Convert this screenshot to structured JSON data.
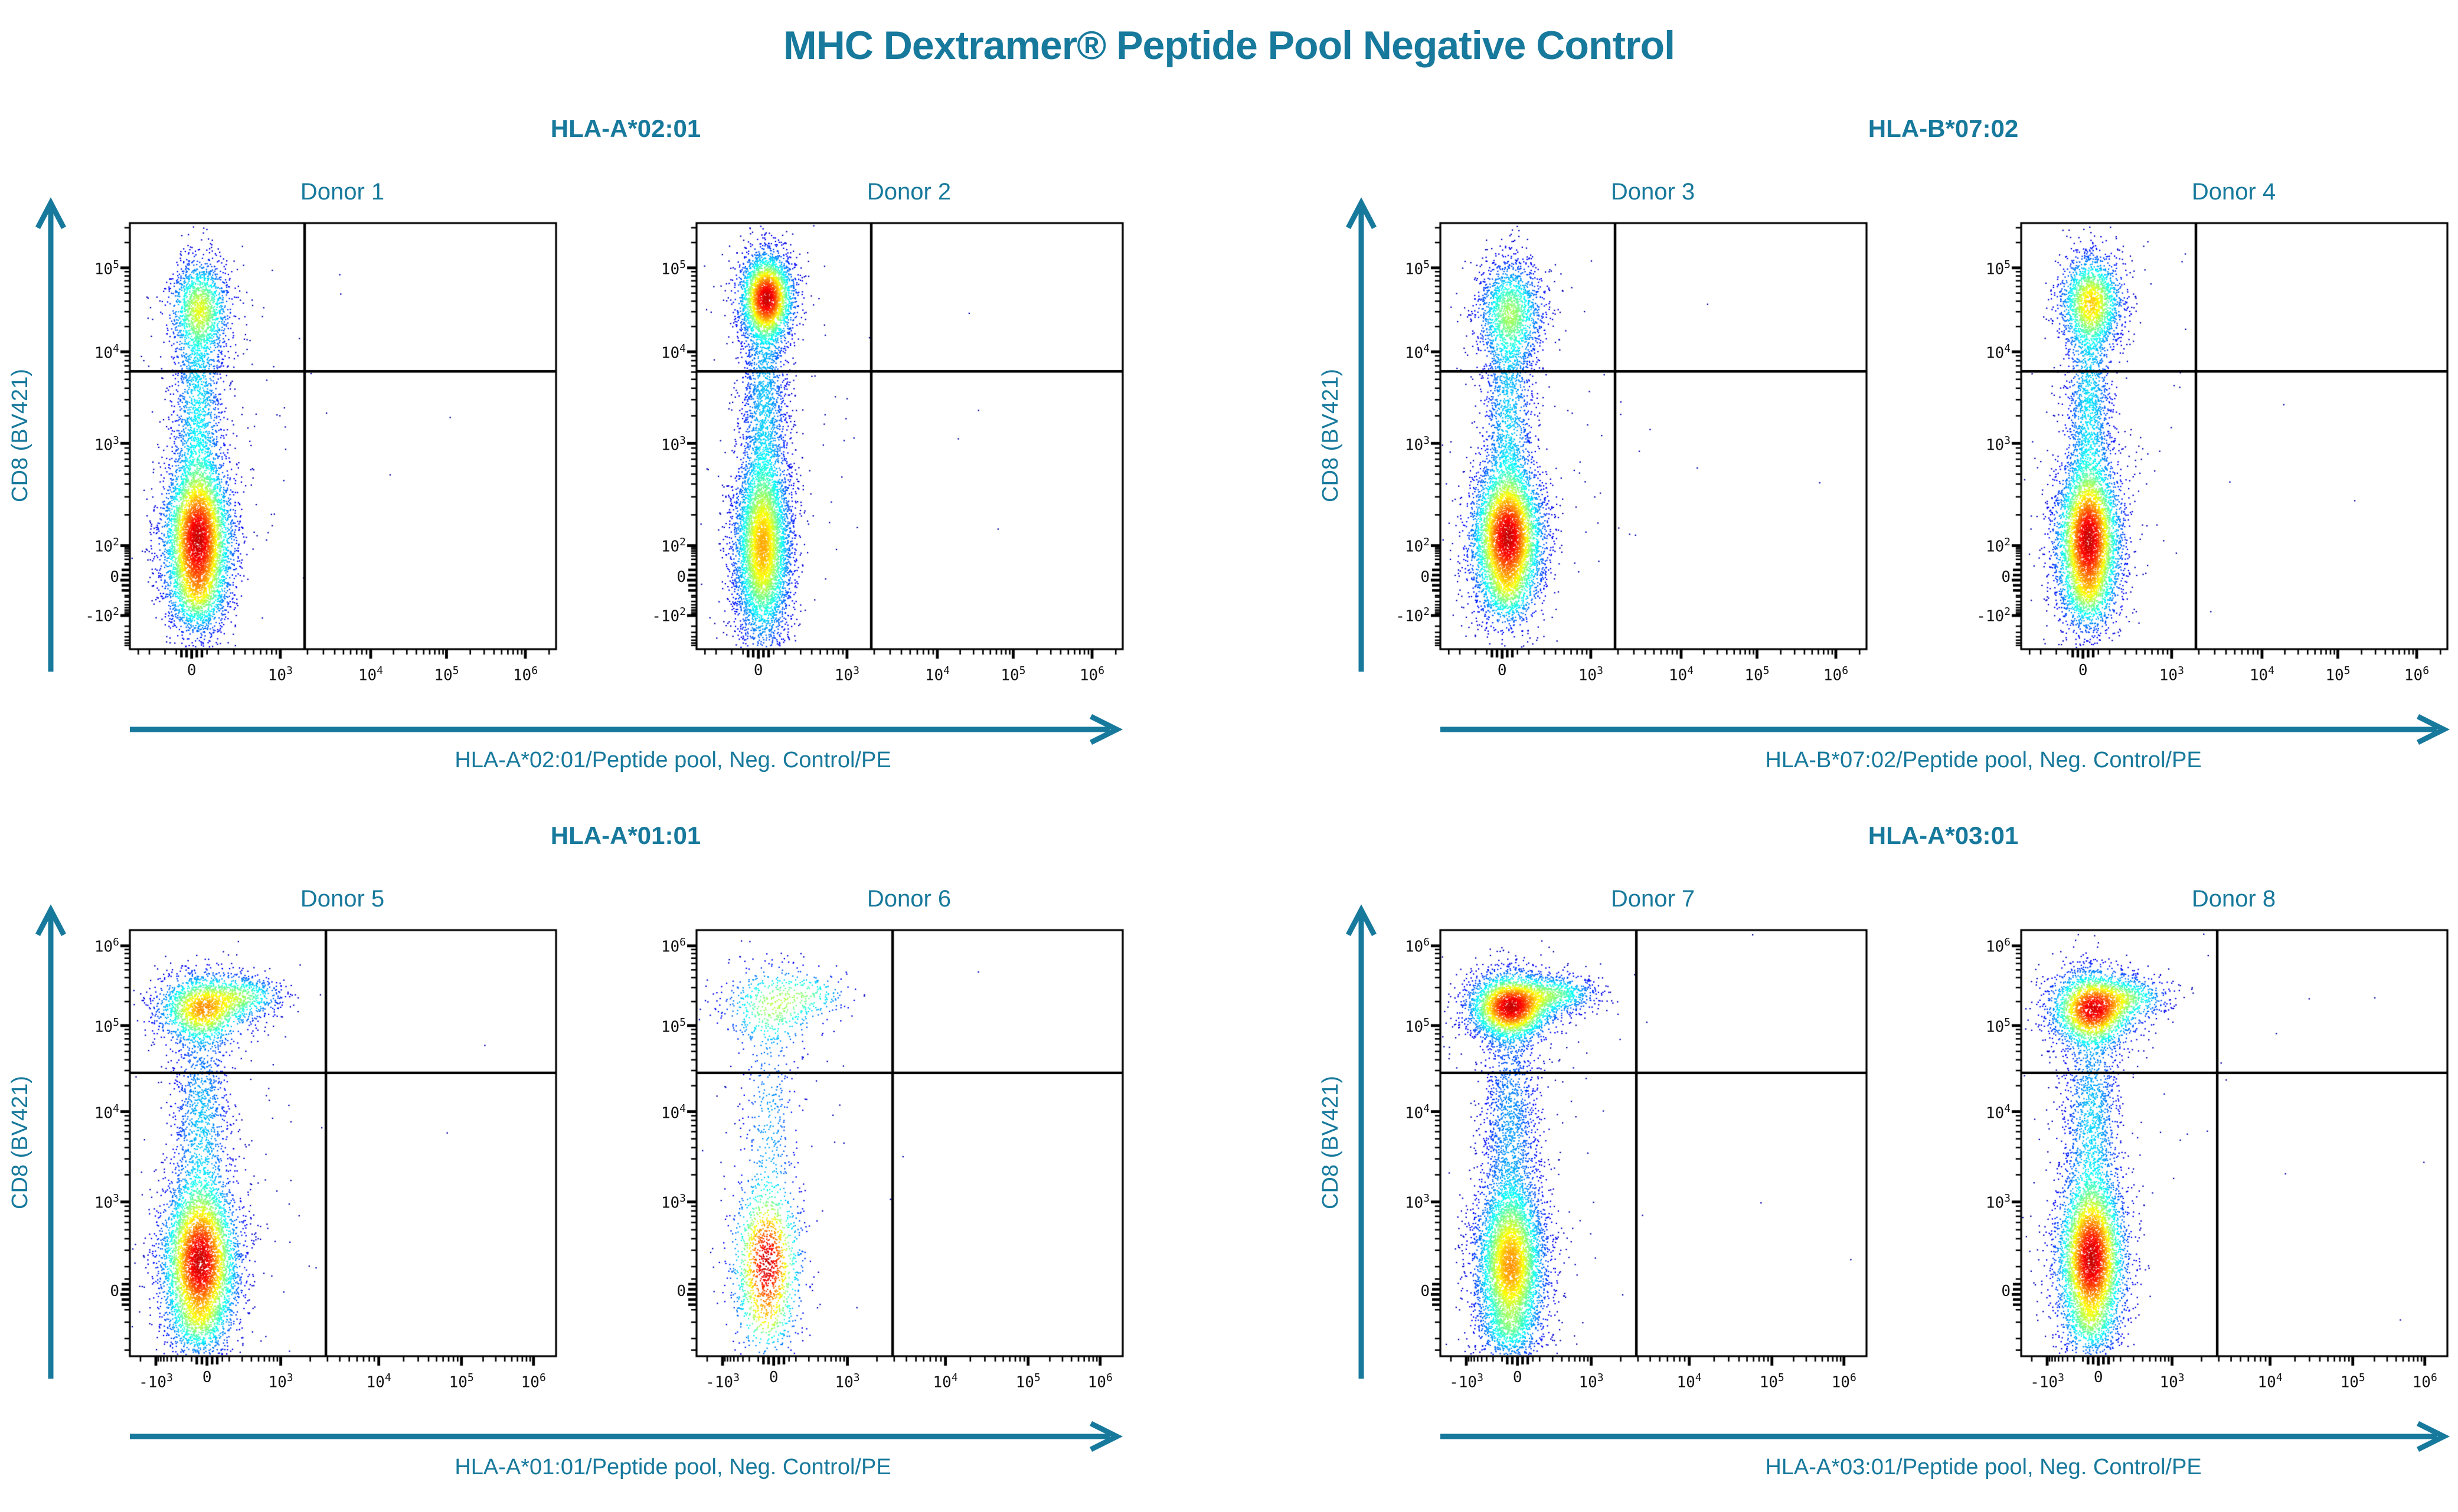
{
  "title": "MHC Dextramer® Peptide Pool Negative Control",
  "colors": {
    "accent": "#17799c",
    "tick_text": "#111111",
    "gate_line": "#000000",
    "frame": "#000000"
  },
  "groups": [
    {
      "allele": "HLA-A*02:01",
      "donors": [
        "Donor 1",
        "Donor 2"
      ],
      "x_axis_label": "HLA-A*02:01/Peptide pool, Neg. Control/PE",
      "y_axis_label": "CD8 (BV421)"
    },
    {
      "allele": "HLA-B*07:02",
      "donors": [
        "Donor 3",
        "Donor 4"
      ],
      "x_axis_label": "HLA-B*07:02/Peptide pool, Neg. Control/PE",
      "y_axis_label": "CD8 (BV421)"
    },
    {
      "allele": "HLA-A*01:01",
      "donors": [
        "Donor 5",
        "Donor 6"
      ],
      "x_axis_label": "HLA-A*01:01/Peptide pool, Neg. Control/PE",
      "y_axis_label": "CD8 (BV421)"
    },
    {
      "allele": "HLA-A*03:01",
      "donors": [
        "Donor 7",
        "Donor 8"
      ],
      "x_axis_label": "HLA-A*03:01/Peptide pool, Neg. Control/PE",
      "y_axis_label": "CD8 (BV421)"
    }
  ],
  "chart_data": {
    "type": "scatter",
    "subtype": "flow-cytometry-pseudocolor-density",
    "description": "Eight biexponential CD8 (BV421) vs MHC Dextramer negative-control PE density dot plots. All donors show CD8+ and CD8- populations at PE signal ~0 (left of vertical quadrant gate); upper-right and lower-right quadrants are empty (negative control).",
    "rows": [
      {
        "y_ticks": [
          {
            "m": "-10",
            "e": "2",
            "v": -100,
            "pos": 0.079
          },
          {
            "m": "0",
            "v": 0,
            "pos": 0.162
          },
          {
            "m": "10",
            "e": "2",
            "v": 100,
            "pos": 0.243
          },
          {
            "m": "10",
            "e": "3",
            "v": 1000,
            "pos": 0.483
          },
          {
            "m": "10",
            "e": "4",
            "v": 10000,
            "pos": 0.698
          },
          {
            "m": "10",
            "e": "5",
            "v": 100000,
            "pos": 0.895
          }
        ],
        "x_ticks": [
          {
            "m": "0",
            "v": 0,
            "pos": 0.145
          },
          {
            "m": "10",
            "e": "3",
            "v": 1000,
            "pos": 0.353
          },
          {
            "m": "10",
            "e": "4",
            "v": 10000,
            "pos": 0.565
          },
          {
            "m": "10",
            "e": "5",
            "v": 100000,
            "pos": 0.743
          },
          {
            "m": "10",
            "e": "6",
            "v": 1000000,
            "pos": 0.928
          }
        ],
        "gate": {
          "x": 0.41,
          "y": 0.652,
          "x_value": 2000,
          "y_value": 6000
        }
      },
      {
        "y_ticks": [
          {
            "m": "0",
            "v": 0,
            "pos": 0.145
          },
          {
            "m": "10",
            "e": "3",
            "v": 1000,
            "pos": 0.362
          },
          {
            "m": "10",
            "e": "4",
            "v": 10000,
            "pos": 0.574
          },
          {
            "m": "10",
            "e": "5",
            "v": 100000,
            "pos": 0.776
          },
          {
            "m": "10",
            "e": "6",
            "v": 1000000,
            "pos": 0.963
          }
        ],
        "x_ticks": [
          {
            "m": "-10",
            "e": "3",
            "v": -1000,
            "pos": 0.061
          },
          {
            "m": "0",
            "v": 0,
            "pos": 0.181
          },
          {
            "m": "10",
            "e": "3",
            "v": 1000,
            "pos": 0.354
          },
          {
            "m": "10",
            "e": "4",
            "v": 10000,
            "pos": 0.584
          },
          {
            "m": "10",
            "e": "5",
            "v": 100000,
            "pos": 0.778
          },
          {
            "m": "10",
            "e": "6",
            "v": 1000000,
            "pos": 0.947
          }
        ],
        "gate": {
          "x": 0.46,
          "y": 0.665,
          "x_value": 3000,
          "y_value": 30000
        }
      }
    ],
    "plots": [
      {
        "donor": "Donor 1",
        "hla": "HLA-A*02:01",
        "row": 0,
        "col": 0,
        "seed": 11,
        "clusters": [
          {
            "x": 0.165,
            "y": 0.8,
            "sx": 0.036,
            "sy": 0.058,
            "n": 1400
          },
          {
            "x": 0.16,
            "y": 0.56,
            "sx": 0.03,
            "sy": 0.15,
            "n": 1600
          },
          {
            "x": 0.16,
            "y": 0.255,
            "sx": 0.04,
            "sy": 0.095,
            "n": 5200
          },
          {
            "x": 0.158,
            "y": 0.125,
            "sx": 0.033,
            "sy": 0.045,
            "n": 500
          },
          {
            "x": 0.19,
            "y": 0.55,
            "sx": 0.11,
            "sy": 0.3,
            "n": 120
          },
          {
            "x": 0.45,
            "y": 0.6,
            "sx": 0.28,
            "sy": 0.25,
            "n": 12
          }
        ]
      },
      {
        "donor": "Donor 2",
        "hla": "HLA-A*02:01",
        "row": 0,
        "col": 1,
        "seed": 22,
        "clusters": [
          {
            "x": 0.165,
            "y": 0.825,
            "sx": 0.032,
            "sy": 0.052,
            "n": 3000
          },
          {
            "x": 0.16,
            "y": 0.58,
            "sx": 0.028,
            "sy": 0.16,
            "n": 1800
          },
          {
            "x": 0.155,
            "y": 0.235,
            "sx": 0.034,
            "sy": 0.115,
            "n": 5000
          },
          {
            "x": 0.185,
            "y": 0.52,
            "sx": 0.1,
            "sy": 0.32,
            "n": 120
          },
          {
            "x": 0.45,
            "y": 0.65,
            "sx": 0.25,
            "sy": 0.22,
            "n": 10
          }
        ]
      },
      {
        "donor": "Donor 3",
        "hla": "HLA-B*07:02",
        "row": 0,
        "col": 2,
        "seed": 33,
        "clusters": [
          {
            "x": 0.165,
            "y": 0.79,
            "sx": 0.04,
            "sy": 0.062,
            "n": 1500
          },
          {
            "x": 0.16,
            "y": 0.55,
            "sx": 0.03,
            "sy": 0.15,
            "n": 1500
          },
          {
            "x": 0.158,
            "y": 0.26,
            "sx": 0.042,
            "sy": 0.085,
            "n": 5200
          },
          {
            "x": 0.157,
            "y": 0.13,
            "sx": 0.032,
            "sy": 0.04,
            "n": 400
          },
          {
            "x": 0.19,
            "y": 0.55,
            "sx": 0.11,
            "sy": 0.3,
            "n": 130
          },
          {
            "x": 0.45,
            "y": 0.6,
            "sx": 0.28,
            "sy": 0.25,
            "n": 12
          }
        ]
      },
      {
        "donor": "Donor 4",
        "hla": "HLA-B*07:02",
        "row": 0,
        "col": 3,
        "seed": 44,
        "clusters": [
          {
            "x": 0.165,
            "y": 0.815,
            "sx": 0.038,
            "sy": 0.056,
            "n": 1800
          },
          {
            "x": 0.16,
            "y": 0.57,
            "sx": 0.028,
            "sy": 0.15,
            "n": 1500
          },
          {
            "x": 0.158,
            "y": 0.255,
            "sx": 0.038,
            "sy": 0.092,
            "n": 5000
          },
          {
            "x": 0.157,
            "y": 0.125,
            "sx": 0.032,
            "sy": 0.042,
            "n": 400
          },
          {
            "x": 0.19,
            "y": 0.55,
            "sx": 0.1,
            "sy": 0.3,
            "n": 120
          },
          {
            "x": 0.45,
            "y": 0.6,
            "sx": 0.25,
            "sy": 0.22,
            "n": 10
          }
        ]
      },
      {
        "donor": "Donor 5",
        "hla": "HLA-A*01:01",
        "row": 1,
        "col": 0,
        "seed": 55,
        "clusters": [
          {
            "x": 0.17,
            "y": 0.815,
            "sx": 0.055,
            "sy": 0.042,
            "n": 1800
          },
          {
            "x": 0.27,
            "y": 0.845,
            "sx": 0.048,
            "sy": 0.026,
            "n": 500
          },
          {
            "x": 0.168,
            "y": 0.55,
            "sx": 0.035,
            "sy": 0.14,
            "n": 1200
          },
          {
            "x": 0.165,
            "y": 0.22,
            "sx": 0.045,
            "sy": 0.1,
            "n": 5200
          },
          {
            "x": 0.16,
            "y": 0.075,
            "sx": 0.035,
            "sy": 0.035,
            "n": 250
          },
          {
            "x": 0.2,
            "y": 0.5,
            "sx": 0.11,
            "sy": 0.3,
            "n": 120
          },
          {
            "x": 0.5,
            "y": 0.5,
            "sx": 0.28,
            "sy": 0.26,
            "n": 10
          }
        ]
      },
      {
        "donor": "Donor 6",
        "hla": "HLA-A*01:01",
        "row": 1,
        "col": 1,
        "seed": 66,
        "clusters": [
          {
            "x": 0.175,
            "y": 0.82,
            "sx": 0.06,
            "sy": 0.05,
            "n": 450
          },
          {
            "x": 0.27,
            "y": 0.85,
            "sx": 0.05,
            "sy": 0.028,
            "n": 140
          },
          {
            "x": 0.17,
            "y": 0.56,
            "sx": 0.035,
            "sy": 0.14,
            "n": 300
          },
          {
            "x": 0.165,
            "y": 0.215,
            "sx": 0.04,
            "sy": 0.1,
            "n": 1400
          },
          {
            "x": 0.16,
            "y": 0.08,
            "sx": 0.03,
            "sy": 0.03,
            "n": 60
          },
          {
            "x": 0.2,
            "y": 0.5,
            "sx": 0.1,
            "sy": 0.28,
            "n": 60
          },
          {
            "x": 0.5,
            "y": 0.55,
            "sx": 0.25,
            "sy": 0.25,
            "n": 6
          }
        ]
      },
      {
        "donor": "Donor 7",
        "hla": "HLA-A*03:01",
        "row": 1,
        "col": 2,
        "seed": 77,
        "clusters": [
          {
            "x": 0.165,
            "y": 0.82,
            "sx": 0.05,
            "sy": 0.04,
            "n": 3200
          },
          {
            "x": 0.275,
            "y": 0.85,
            "sx": 0.05,
            "sy": 0.024,
            "n": 700
          },
          {
            "x": 0.165,
            "y": 0.55,
            "sx": 0.036,
            "sy": 0.15,
            "n": 1500
          },
          {
            "x": 0.165,
            "y": 0.21,
            "sx": 0.042,
            "sy": 0.105,
            "n": 5200
          },
          {
            "x": 0.16,
            "y": 0.06,
            "sx": 0.035,
            "sy": 0.03,
            "n": 250
          },
          {
            "x": 0.2,
            "y": 0.5,
            "sx": 0.11,
            "sy": 0.3,
            "n": 130
          },
          {
            "x": 0.5,
            "y": 0.55,
            "sx": 0.28,
            "sy": 0.25,
            "n": 10
          }
        ]
      },
      {
        "donor": "Donor 8",
        "hla": "HLA-A*03:01",
        "row": 1,
        "col": 3,
        "seed": 88,
        "clusters": [
          {
            "x": 0.168,
            "y": 0.815,
            "sx": 0.05,
            "sy": 0.045,
            "n": 2600
          },
          {
            "x": 0.262,
            "y": 0.842,
            "sx": 0.046,
            "sy": 0.026,
            "n": 450
          },
          {
            "x": 0.166,
            "y": 0.55,
            "sx": 0.034,
            "sy": 0.145,
            "n": 1400
          },
          {
            "x": 0.165,
            "y": 0.225,
            "sx": 0.04,
            "sy": 0.1,
            "n": 5000
          },
          {
            "x": 0.16,
            "y": 0.07,
            "sx": 0.033,
            "sy": 0.032,
            "n": 220
          },
          {
            "x": 0.2,
            "y": 0.5,
            "sx": 0.1,
            "sy": 0.3,
            "n": 120
          },
          {
            "x": 0.5,
            "y": 0.55,
            "sx": 0.26,
            "sy": 0.24,
            "n": 10
          }
        ]
      }
    ]
  }
}
